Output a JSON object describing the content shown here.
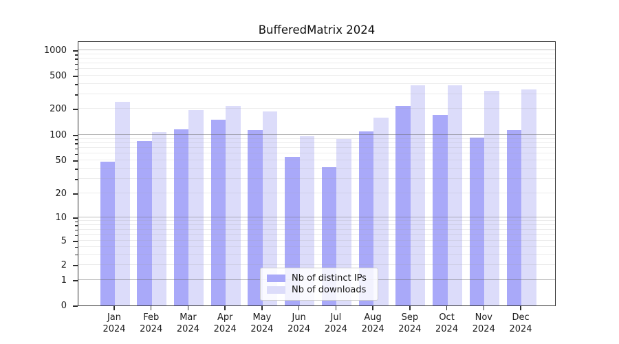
{
  "chart_data": {
    "type": "bar",
    "title": "BufferedMatrix 2024",
    "categories": [
      "Jan",
      "Feb",
      "Mar",
      "Apr",
      "May",
      "Jun",
      "Jul",
      "Aug",
      "Sep",
      "Oct",
      "Nov",
      "Dec"
    ],
    "x_tick_line2": "2024",
    "series": [
      {
        "name": "Nb of distinct IPs",
        "color": "#a9a9f9",
        "values": [
          48,
          85,
          115,
          150,
          113,
          55,
          41,
          110,
          215,
          170,
          93,
          114
        ]
      },
      {
        "name": "Nb of downloads",
        "color": "#dcdcfa",
        "values": [
          240,
          108,
          192,
          215,
          187,
          97,
          90,
          158,
          380,
          385,
          330,
          340
        ]
      }
    ],
    "yscale": "symlog",
    "ylim": [
      0,
      1000
    ],
    "y_ticks": [
      0,
      1,
      2,
      5,
      10,
      20,
      50,
      100,
      200,
      500,
      1000
    ],
    "major_gridline_values": [
      1,
      10,
      100,
      1000
    ],
    "minor_gridline_values": [
      2,
      3,
      4,
      5,
      6,
      7,
      8,
      9,
      20,
      30,
      40,
      50,
      60,
      70,
      80,
      90,
      200,
      300,
      400,
      500,
      600,
      700,
      800,
      900
    ],
    "grid": true,
    "legend": {
      "position": "lower center",
      "items": [
        "Nb of distinct IPs",
        "Nb of downloads"
      ]
    }
  }
}
